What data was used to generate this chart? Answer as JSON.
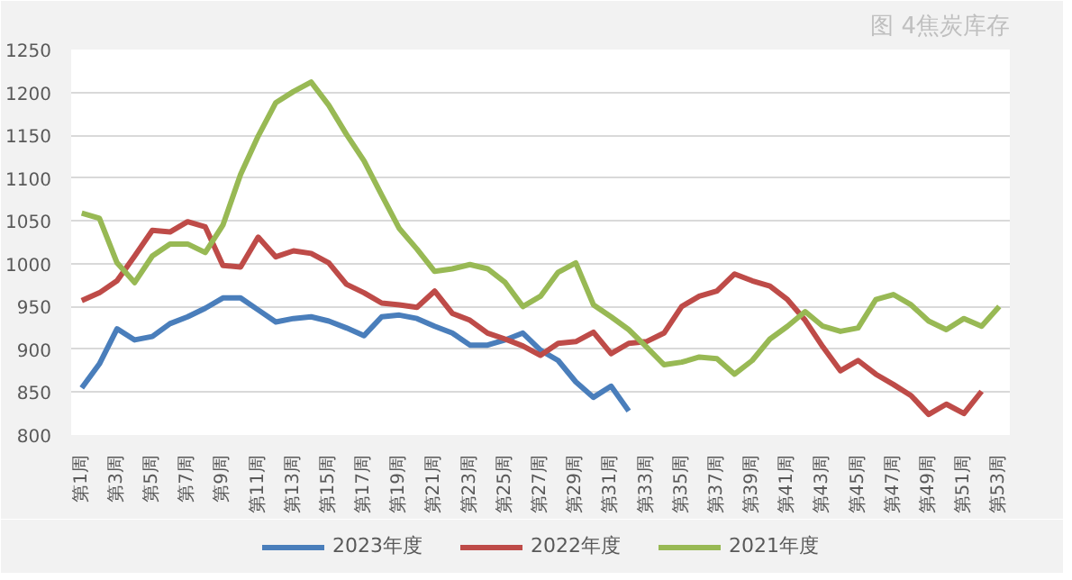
{
  "chart_data": {
    "type": "line",
    "title": "图 4焦炭库存",
    "categories": [
      "第1周",
      null,
      "第3周",
      null,
      "第5周",
      null,
      "第7周",
      null,
      "第9周",
      null,
      "第11周",
      null,
      "第13周",
      null,
      "第15周",
      null,
      "第17周",
      null,
      "第19周",
      null,
      "第21周",
      null,
      "第23周",
      null,
      "第25周",
      null,
      "第27周",
      null,
      "第29周",
      null,
      "第31周",
      null,
      "第33周",
      null,
      "第35周",
      null,
      "第37周",
      null,
      "第39周",
      null,
      "第41周",
      null,
      "第43周",
      null,
      "第45周",
      null,
      "第47周",
      null,
      "第49周",
      null,
      "第51周",
      null,
      "第53周"
    ],
    "series": [
      {
        "name": "2023年度",
        "color": "#4a7ebb",
        "values": [
          855,
          883,
          924,
          911,
          915,
          930,
          938,
          948,
          960,
          960,
          946,
          932,
          936,
          938,
          933,
          925,
          916,
          938,
          940,
          936,
          927,
          919,
          905,
          905,
          911,
          919,
          899,
          887,
          862,
          844,
          857,
          828,
          null,
          null,
          null,
          null,
          null,
          null,
          null,
          null,
          null,
          null,
          null,
          null,
          null,
          null,
          null,
          null,
          null,
          null,
          null,
          null,
          null
        ]
      },
      {
        "name": "2022年度",
        "color": "#be4b48",
        "values": [
          957,
          966,
          980,
          1009,
          1039,
          1037,
          1049,
          1043,
          998,
          996,
          1031,
          1008,
          1015,
          1012,
          1001,
          976,
          966,
          954,
          952,
          949,
          968,
          942,
          934,
          919,
          912,
          904,
          893,
          907,
          909,
          920,
          895,
          907,
          909,
          919,
          950,
          962,
          968,
          988,
          980,
          974,
          958,
          934,
          903,
          875,
          887,
          871,
          859,
          846,
          824,
          836,
          825,
          851,
          null
        ]
      },
      {
        "name": "2021年度",
        "color": "#98b954",
        "values": [
          1059,
          1053,
          1001,
          978,
          1009,
          1023,
          1023,
          1013,
          1045,
          1104,
          1149,
          1188,
          1201,
          1212,
          1185,
          1151,
          1120,
          1080,
          1041,
          1017,
          991,
          994,
          999,
          994,
          978,
          950,
          962,
          990,
          1001,
          952,
          938,
          923,
          903,
          882,
          885,
          891,
          889,
          871,
          887,
          912,
          927,
          944,
          927,
          921,
          925,
          958,
          964,
          952,
          933,
          923,
          936,
          927,
          950
        ]
      }
    ],
    "ylim": [
      800,
      1250
    ],
    "yticks": [
      800,
      850,
      900,
      950,
      1000,
      1050,
      1100,
      1150,
      1200,
      1250
    ],
    "grid": "y",
    "legend": "bottom"
  }
}
